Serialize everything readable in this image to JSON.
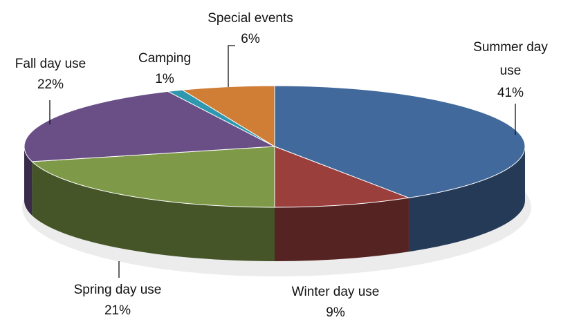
{
  "chart_data": {
    "type": "pie",
    "categories": [
      "Summer day use",
      "Winter day use",
      "Spring day use",
      "Fall day use",
      "Camping",
      "Special events"
    ],
    "values": [
      41,
      9,
      21,
      22,
      1,
      6
    ],
    "value_labels": [
      "41%",
      "9%",
      "21%",
      "22%",
      "1%",
      "6%"
    ],
    "colors": [
      "#41699c",
      "#9b3f3d",
      "#7e9a48",
      "#6a4f86",
      "#2f97ae",
      "#d07d36"
    ]
  }
}
